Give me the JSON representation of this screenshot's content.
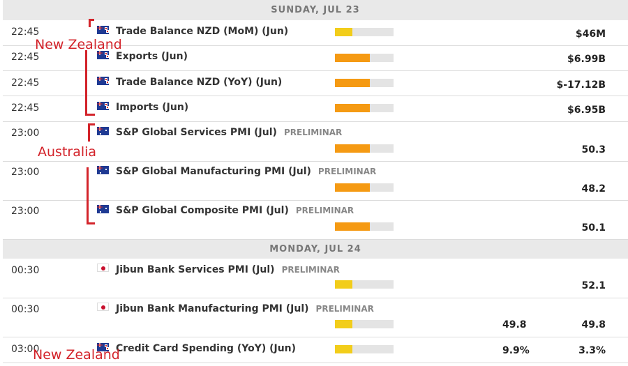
{
  "days": [
    {
      "label": "SUNDAY, JUL 23"
    },
    {
      "label": "MONDAY, JUL 24"
    }
  ],
  "rows": [
    {
      "time": "22:45",
      "flag": "nz-flag-icon",
      "event": "Trade Balance NZD (MoM) (Jun)",
      "prelim": "",
      "impact": "low",
      "previous": "",
      "actual": "$46M"
    },
    {
      "time": "22:45",
      "flag": "nz-flag-icon",
      "event": "Exports (Jun)",
      "prelim": "",
      "impact": "medium",
      "previous": "",
      "actual": "$6.99B"
    },
    {
      "time": "22:45",
      "flag": "nz-flag-icon",
      "event": "Trade Balance NZD (YoY) (Jun)",
      "prelim": "",
      "impact": "medium",
      "previous": "",
      "actual": "$-17.12B"
    },
    {
      "time": "22:45",
      "flag": "nz-flag-icon",
      "event": "Imports (Jun)",
      "prelim": "",
      "impact": "medium",
      "previous": "",
      "actual": "$6.95B"
    },
    {
      "time": "23:00",
      "flag": "au-flag-icon",
      "event": "S&P Global Services PMI (Jul)",
      "prelim": "PRELIMINAR",
      "impact": "medium",
      "previous": "",
      "actual": "50.3"
    },
    {
      "time": "23:00",
      "flag": "au-flag-icon",
      "event": "S&P Global Manufacturing PMI (Jul)",
      "prelim": "PRELIMINAR",
      "impact": "medium",
      "previous": "",
      "actual": "48.2"
    },
    {
      "time": "23:00",
      "flag": "au-flag-icon",
      "event": "S&P Global Composite PMI (Jul)",
      "prelim": "PRELIMINAR",
      "impact": "medium",
      "previous": "",
      "actual": "50.1"
    },
    {
      "time": "00:30",
      "flag": "jp-flag-icon",
      "event": "Jibun Bank Services PMI (Jul)",
      "prelim": "PRELIMINAR",
      "impact": "low",
      "previous": "",
      "actual": "52.1"
    },
    {
      "time": "00:30",
      "flag": "jp-flag-icon",
      "event": "Jibun Bank Manufacturing PMI (Jul)",
      "prelim": "PRELIMINAR",
      "impact": "low",
      "previous": "49.8",
      "actual": "49.8"
    },
    {
      "time": "03:00",
      "flag": "nz-flag-icon",
      "event": "Credit Card Spending (YoY) (Jun)",
      "prelim": "",
      "impact": "low",
      "previous": "9.9%",
      "actual": "3.3%"
    }
  ],
  "annotations": {
    "nz_top": "New Zealand",
    "australia": "Australia",
    "nz_bottom": "New Zealand"
  },
  "colors": {
    "impact_low": "#f2cd1a",
    "impact_medium": "#f59a13",
    "annotation": "#d3232a",
    "header_bg": "#e9e9e9"
  }
}
